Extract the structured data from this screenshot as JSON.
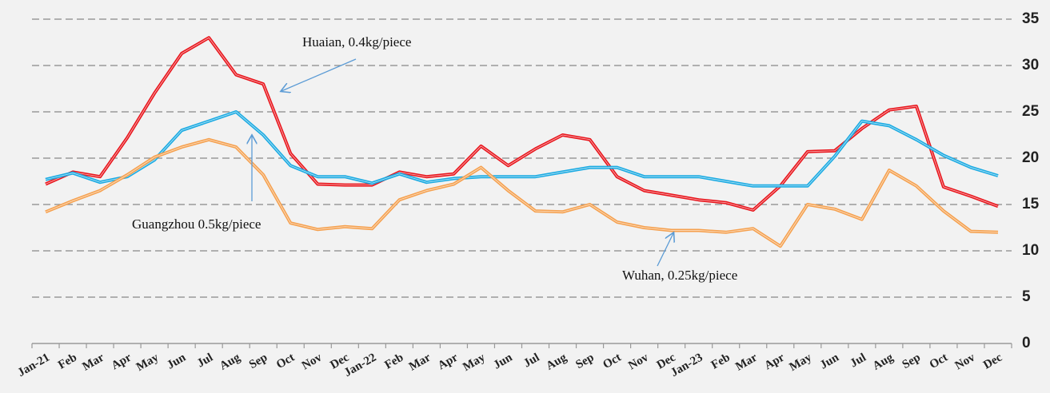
{
  "chart_data": {
    "type": "line",
    "categories": [
      "Jan-21",
      "Feb",
      "Mar",
      "Apr",
      "May",
      "Jun",
      "Jul",
      "Aug",
      "Sep",
      "Oct",
      "Nov",
      "Dec",
      "Jan-22",
      "Feb",
      "Mar",
      "Apr",
      "May",
      "Jun",
      "Jul",
      "Aug",
      "Sep",
      "Oct",
      "Nov",
      "Dec",
      "Jan-23",
      "Feb",
      "Mar",
      "Apr",
      "May",
      "Jun",
      "Jul",
      "Aug",
      "Sep",
      "Oct",
      "Nov",
      "Dec"
    ],
    "series": [
      {
        "name": "Huaian, 0.4kg/piece",
        "color": "#e8141b",
        "values": [
          17.2,
          18.5,
          18,
          22.2,
          27,
          31.3,
          33,
          29,
          28,
          20.5,
          17.2,
          17.1,
          17.1,
          18.5,
          18,
          18.3,
          21.3,
          19.2,
          21,
          22.5,
          22,
          18,
          16.5,
          16,
          15.5,
          15.2,
          14.4,
          17,
          20.7,
          20.8,
          23.2,
          25.2,
          25.6,
          16.9,
          15.9,
          14.8
        ]
      },
      {
        "name": "Guangzhou 0.5kg/piece",
        "color": "#1aaae2",
        "values": [
          17.7,
          18.4,
          17.4,
          18,
          19.8,
          23,
          24,
          25,
          22.5,
          19.2,
          18,
          18,
          17.3,
          18.3,
          17.4,
          17.8,
          18,
          18,
          18,
          18.5,
          19,
          19,
          18,
          18,
          18,
          17.5,
          17,
          17,
          17,
          20.2,
          24,
          23.5,
          22,
          20.3,
          19,
          18.1
        ]
      },
      {
        "name": "Wuhan, 0.25kg/piece",
        "color": "#f5a04e",
        "values": [
          14.2,
          15.4,
          16.5,
          18.2,
          20.1,
          21.2,
          22,
          21.2,
          18.2,
          13,
          12.3,
          12.6,
          12.4,
          15.5,
          16.5,
          17.2,
          19,
          16.5,
          14.3,
          14.2,
          15,
          13.1,
          12.5,
          12.2,
          12.2,
          12,
          12.4,
          10.5,
          15,
          14.5,
          13.4,
          18.7,
          17,
          14.3,
          12.1,
          12
        ]
      }
    ],
    "ylim": [
      0,
      35
    ],
    "yticks": [
      0,
      5,
      10,
      15,
      20,
      25,
      30,
      35
    ],
    "grid": true
  }
}
